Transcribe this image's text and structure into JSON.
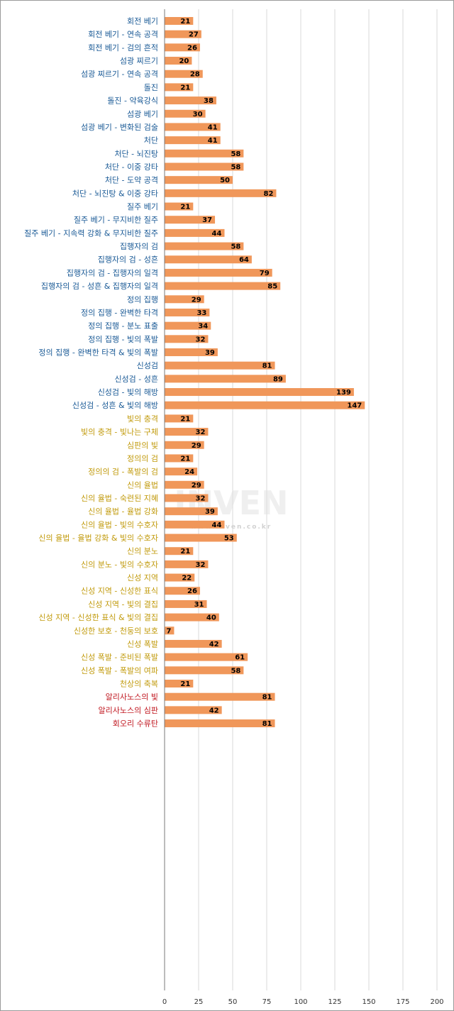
{
  "chart_data": {
    "type": "bar",
    "orientation": "horizontal",
    "xlim": [
      0,
      200
    ],
    "xticks": [
      0,
      25,
      50,
      75,
      100,
      125,
      150,
      175,
      200
    ],
    "grid": true,
    "legend": "none",
    "bar_color": "#f0975a",
    "watermark": {
      "logo": "INVEN",
      "url": "www.inven.co.kr"
    },
    "colors": {
      "blue": "#1a5a96",
      "gold": "#c19a0b",
      "red": "#c0161f"
    },
    "groups": [
      {
        "color": "blue",
        "items": [
          {
            "label": "회전 베기",
            "value": 21
          },
          {
            "label": "회전 베기 - 연속 공격",
            "value": 27
          },
          {
            "label": "회전 베기 - 검의 흔적",
            "value": 26
          }
        ]
      },
      {
        "color": "blue",
        "items": [
          {
            "label": "섬광 찌르기",
            "value": 20
          },
          {
            "label": "섬광 찌르기 - 연속 공격",
            "value": 28
          }
        ]
      },
      {
        "color": "blue",
        "items": [
          {
            "label": "돌진",
            "value": 21
          },
          {
            "label": "돌진 - 약육강식",
            "value": 38
          }
        ]
      },
      {
        "color": "blue",
        "items": [
          {
            "label": "섬광 베기",
            "value": 30
          },
          {
            "label": "섬광 베기 - 변화된 검술",
            "value": 41
          }
        ]
      },
      {
        "color": "blue",
        "items": [
          {
            "label": "처단",
            "value": 41
          },
          {
            "label": "처단 - 뇌진탕",
            "value": 58
          },
          {
            "label": "처단 - 이중 강타",
            "value": 58
          },
          {
            "label": "처단 - 도약 공격",
            "value": 50
          },
          {
            "label": "처단 - 뇌진탕 & 이중 강타",
            "value": 82
          }
        ]
      },
      {
        "color": "blue",
        "items": [
          {
            "label": "질주 베기",
            "value": 21
          },
          {
            "label": "질주 베기 - 무지비한 질주",
            "value": 37
          },
          {
            "label": "질주 베기 - 지속력 강화 & 무지비한 질주",
            "value": 44
          }
        ]
      },
      {
        "color": "blue",
        "items": [
          {
            "label": "집행자의 검",
            "value": 58
          },
          {
            "label": "집행자의 검 - 성흔",
            "value": 64
          },
          {
            "label": "집행자의 검 - 집행자의 일격",
            "value": 79
          },
          {
            "label": "집행자의 검 - 성흔 & 집행자의 일격",
            "value": 85
          }
        ]
      },
      {
        "color": "blue",
        "items": [
          {
            "label": "정의 집행",
            "value": 29
          },
          {
            "label": "정의 집행 - 완벽한 타격",
            "value": 33
          },
          {
            "label": "정의 집행 - 분노 표출",
            "value": 34
          },
          {
            "label": "정의 집행 - 빛의 폭발",
            "value": 32
          },
          {
            "label": "정의 집행 - 완벽한 타격 & 빛의 폭발",
            "value": 39
          }
        ]
      },
      {
        "color": "blue",
        "items": [
          {
            "label": "신성검",
            "value": 81
          },
          {
            "label": "신성검 - 성흔",
            "value": 89
          },
          {
            "label": "신성검 - 빛의 해방",
            "value": 139
          },
          {
            "label": "신성검 - 성흔 & 빛의 해방",
            "value": 147
          }
        ]
      },
      {
        "color": "gold",
        "items": [
          {
            "label": "빛의 충격",
            "value": 21
          },
          {
            "label": "빛의 충격 - 빛나는 구체",
            "value": 32
          }
        ]
      },
      {
        "color": "gold",
        "items": [
          {
            "label": "심판의 빛",
            "value": 29
          }
        ]
      },
      {
        "color": "gold",
        "items": [
          {
            "label": "정의의 검",
            "value": 21
          },
          {
            "label": "정의의 검 - 폭발의 검",
            "value": 24
          }
        ]
      },
      {
        "color": "gold",
        "items": [
          {
            "label": "신의 율법",
            "value": 29
          },
          {
            "label": "신의 율법 - 숙련된 지혜",
            "value": 32
          },
          {
            "label": "신의 율법 - 율법 강화",
            "value": 39
          },
          {
            "label": "신의 율법 - 빛의 수호자",
            "value": 44
          },
          {
            "label": "신의 율법 - 율법 강화 & 빛의 수호자",
            "value": 53
          }
        ]
      },
      {
        "color": "gold",
        "items": [
          {
            "label": "신의 분노",
            "value": 21
          },
          {
            "label": "신의 분노 - 빛의 수호자",
            "value": 32
          }
        ]
      },
      {
        "color": "gold",
        "items": [
          {
            "label": "신성 지역",
            "value": 22
          },
          {
            "label": "신성 지역 - 신성한 표식",
            "value": 26
          },
          {
            "label": "신성 지역 - 빛의 결집",
            "value": 31
          },
          {
            "label": "신성 지역 - 신성한 표식 & 빛의 결집",
            "value": 40
          }
        ]
      },
      {
        "color": "gold",
        "items": [
          {
            "label": "신성한 보호 - 천둥의 보호",
            "value": 7
          }
        ]
      },
      {
        "color": "gold",
        "items": [
          {
            "label": "신성 폭발",
            "value": 42
          },
          {
            "label": "신성 폭발 - 준비된 폭발",
            "value": 61
          },
          {
            "label": "신성 폭발 - 폭발의 여파",
            "value": 58
          }
        ]
      },
      {
        "color": "gold",
        "items": [
          {
            "label": "천상의 축복",
            "value": 21
          }
        ]
      },
      {
        "color": "red",
        "items": [
          {
            "label": "알리사노스의 빛",
            "value": 81
          }
        ]
      },
      {
        "color": "red",
        "items": [
          {
            "label": "알리사노스의 심판",
            "value": 42
          }
        ]
      },
      {
        "color": "red",
        "items": [
          {
            "label": "회오리 수류탄",
            "value": 81
          }
        ]
      }
    ]
  }
}
